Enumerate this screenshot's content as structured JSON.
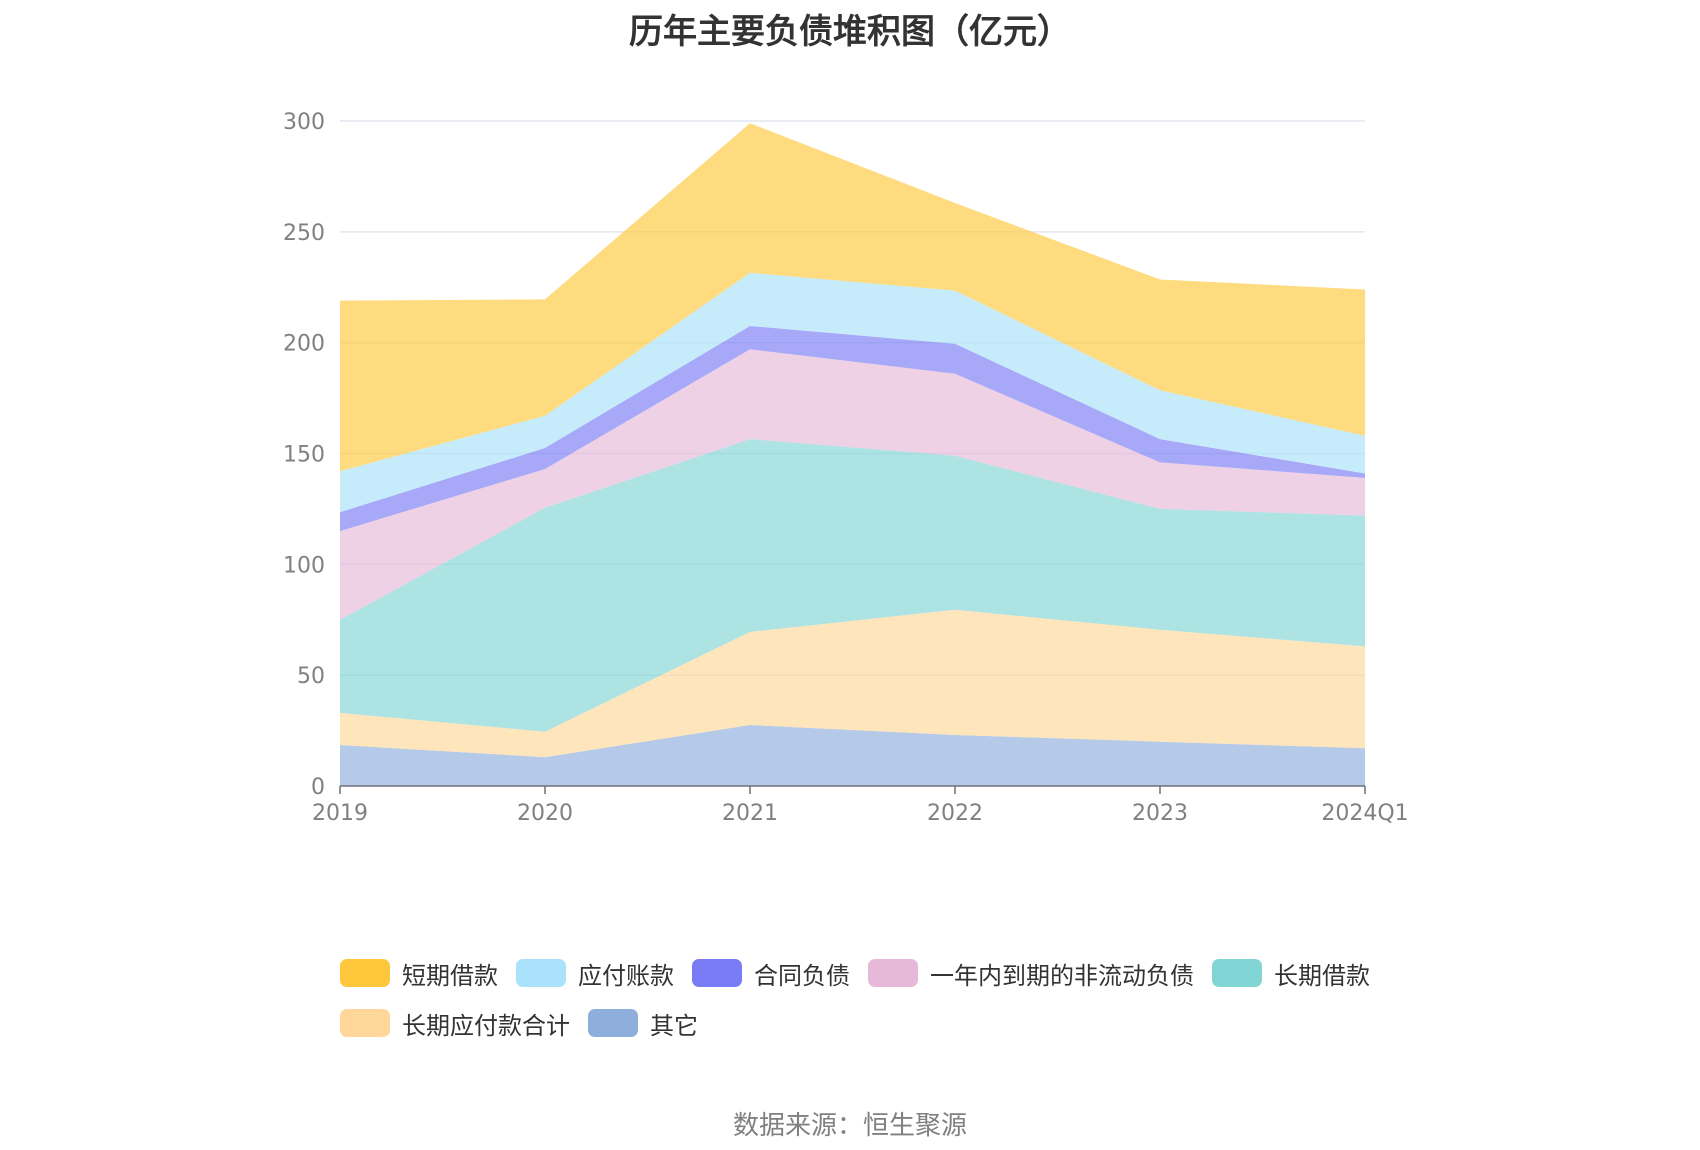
{
  "chart_data": {
    "type": "area",
    "stacked": true,
    "title": "历年主要负债堆积图（亿元）",
    "categories": [
      "2019",
      "2020",
      "2021",
      "2022",
      "2023",
      "2024Q1"
    ],
    "ylim": [
      0,
      300
    ],
    "yticks": [
      0,
      50,
      100,
      150,
      200,
      250,
      300
    ],
    "grid": true,
    "legend_position": "bottom",
    "series": [
      {
        "name": "其它",
        "color": "#8eaedc",
        "values": [
          18.5,
          13,
          27.5,
          23,
          20,
          17
        ]
      },
      {
        "name": "长期应付款合计",
        "color": "#ffd79a",
        "values": [
          14.5,
          11.5,
          42,
          56.5,
          50.5,
          46
        ]
      },
      {
        "name": "长期借款",
        "color": "#82d5d5",
        "values": [
          42,
          101,
          87,
          69.5,
          54.5,
          59
        ]
      },
      {
        "name": "一年内到期的非流动负债",
        "color": "#e7b9d9",
        "values": [
          40,
          17.5,
          40.5,
          37,
          21,
          17
        ]
      },
      {
        "name": "合同负债",
        "color": "#7a7cf5",
        "values": [
          8.5,
          9.5,
          10.5,
          13.5,
          10.5,
          2
        ]
      },
      {
        "name": "应付账款",
        "color": "#a9e2fa",
        "values": [
          18.5,
          14.5,
          24,
          24,
          22,
          17
        ]
      },
      {
        "name": "短期借款",
        "color": "#ffc83c",
        "values": [
          77,
          52.5,
          67.5,
          39.5,
          50,
          66
        ]
      }
    ]
  },
  "legend": [
    {
      "label": "短期借款",
      "color": "#ffc83c"
    },
    {
      "label": "应付账款",
      "color": "#a9e2fa"
    },
    {
      "label": "合同负债",
      "color": "#7a7cf5"
    },
    {
      "label": "一年内到期的非流动负债",
      "color": "#e7b9d9"
    },
    {
      "label": "长期借款",
      "color": "#82d5d5"
    },
    {
      "label": "长期应付款合计",
      "color": "#ffd79a"
    },
    {
      "label": "其它",
      "color": "#8eaedc"
    }
  ],
  "source_text": "数据来源：恒生聚源"
}
